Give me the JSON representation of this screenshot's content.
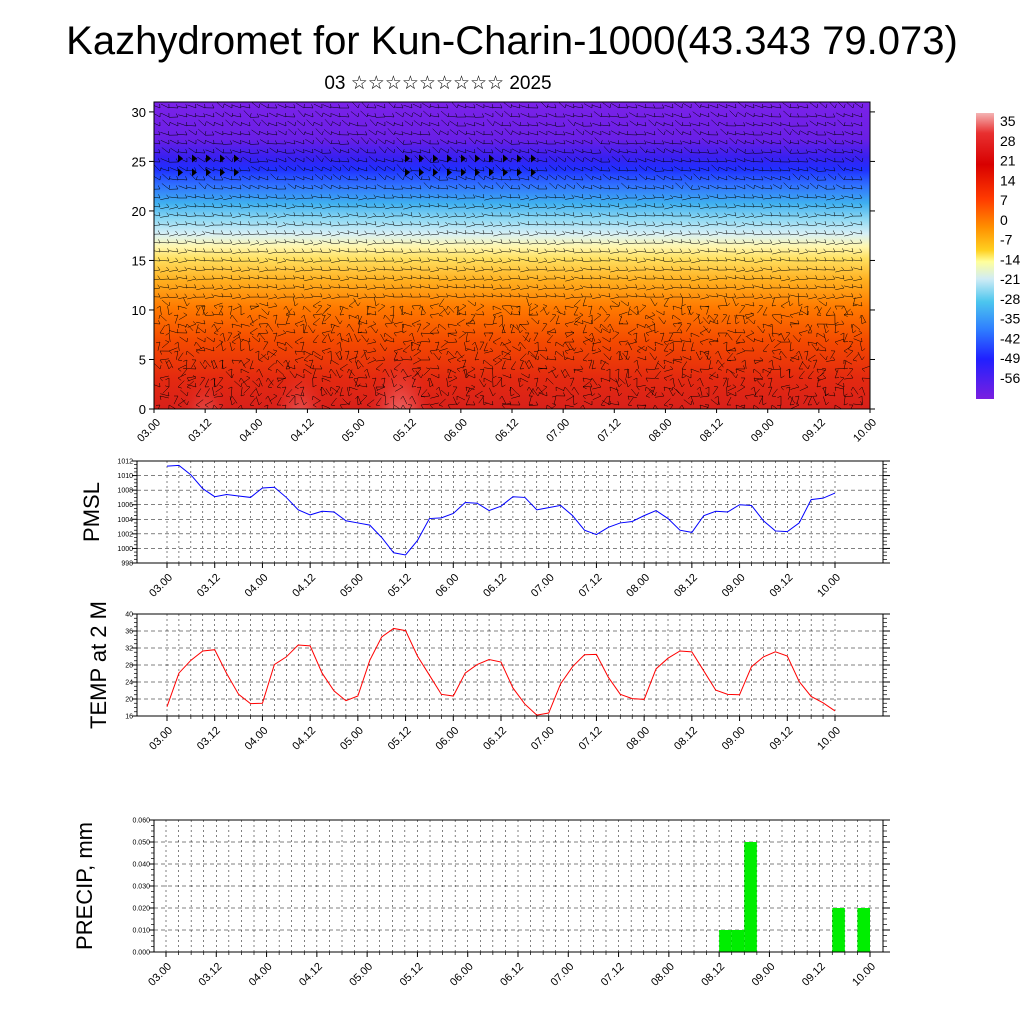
{
  "title": "Kazhydromet for Kun-Charin-1000(43.343 79.073)",
  "subtitle": "03 ☆☆☆☆☆☆☆☆☆ 2025",
  "time_labels": [
    "03.00",
    "03.12",
    "04.00",
    "04.12",
    "05.00",
    "05.12",
    "06.00",
    "06.12",
    "07.00",
    "07.12",
    "08.00",
    "08.12",
    "09.00",
    "09.12",
    "10.00"
  ],
  "colorbar": {
    "labels": [
      "35",
      "28",
      "21",
      "14",
      "7",
      "0",
      "-7",
      "-14",
      "-21",
      "-28",
      "-35",
      "-42",
      "-49",
      "-56"
    ]
  },
  "chart_data": [
    {
      "type": "heatmap",
      "name": "cross-section",
      "ylim": [
        0,
        31
      ],
      "yticks": [
        0,
        5,
        10,
        15,
        20,
        25,
        30
      ],
      "x": [
        "03.00",
        "03.12",
        "04.00",
        "04.12",
        "05.00",
        "05.12",
        "06.00",
        "06.12",
        "07.00",
        "07.12",
        "08.00",
        "08.12",
        "09.00",
        "09.12",
        "10.00"
      ],
      "colormap": [
        "#7a1fe0",
        "#2020ff",
        "#2e7bff",
        "#4cc6ee",
        "#d0ecf5",
        "#ffff9c",
        "#ffd020",
        "#ff9000",
        "#ff3000",
        "#e00000",
        "#f0a0a0"
      ],
      "levels": [
        -56,
        35
      ]
    },
    {
      "type": "line",
      "name": "PMSL",
      "ylabel": "PMSL",
      "ylim": [
        998,
        1012
      ],
      "yticks": [
        998,
        1000,
        1002,
        1004,
        1006,
        1008,
        1010,
        1012
      ],
      "color": "#0000ff",
      "x_step_hours": 3,
      "values": [
        1011.3,
        1011.4,
        1010.1,
        1008.2,
        1007.1,
        1007.4,
        1007.2,
        1007.0,
        1008.3,
        1008.4,
        1007.0,
        1005.3,
        1004.6,
        1005.1,
        1005.0,
        1003.8,
        1003.5,
        1003.2,
        1001.5,
        999.4,
        999.1,
        1001.1,
        1004.1,
        1004.2,
        1004.8,
        1006.3,
        1006.2,
        1005.2,
        1005.8,
        1007.1,
        1007.0,
        1005.3,
        1005.6,
        1005.9,
        1004.5,
        1002.5,
        1001.9,
        1002.9,
        1003.5,
        1003.7,
        1004.5,
        1005.2,
        1004.1,
        1002.5,
        1002.2,
        1004.5,
        1005.1,
        1005.0,
        1006.0,
        1005.9,
        1003.8,
        1002.4,
        1002.3,
        1003.5,
        1006.7,
        1006.9,
        1007.6
      ]
    },
    {
      "type": "line",
      "name": "TEMP at 2 M",
      "ylabel": "TEMP at 2 M",
      "ylim": [
        16,
        40
      ],
      "yticks": [
        16,
        20,
        24,
        28,
        32,
        36,
        40
      ],
      "color": "#ff0000",
      "x_step_hours": 3,
      "values": [
        18.2,
        26.1,
        29.1,
        31.3,
        31.6,
        26.0,
        21.1,
        18.9,
        19.0,
        28.1,
        29.9,
        32.7,
        32.5,
        26.1,
        21.9,
        19.6,
        20.7,
        29.1,
        34.6,
        36.6,
        36.1,
        30.1,
        25.6,
        21.1,
        20.7,
        26.1,
        28.1,
        29.3,
        28.7,
        22.6,
        18.8,
        16.2,
        16.7,
        23.6,
        27.6,
        30.4,
        30.5,
        25.1,
        21.1,
        20.1,
        19.9,
        27.1,
        29.6,
        31.3,
        31.1,
        26.6,
        22.1,
        21.1,
        21.0,
        27.6,
        29.9,
        31.1,
        30.1,
        24.1,
        20.6,
        19.1,
        17.2
      ]
    },
    {
      "type": "bar",
      "name": "precipitation",
      "ylabel": "PRECIP, mm",
      "ylim": [
        0,
        0.06
      ],
      "yticks": [
        "0.000",
        "0.010",
        "0.020",
        "0.030",
        "0.040",
        "0.050",
        "0.060"
      ],
      "color": "#00ee00",
      "x_step_hours": 3,
      "values": [
        0,
        0,
        0,
        0,
        0,
        0,
        0,
        0,
        0,
        0,
        0,
        0,
        0,
        0,
        0,
        0,
        0,
        0,
        0,
        0,
        0,
        0,
        0,
        0,
        0,
        0,
        0,
        0,
        0,
        0,
        0,
        0,
        0,
        0,
        0,
        0,
        0,
        0,
        0,
        0,
        0,
        0,
        0,
        0,
        0.01,
        0.01,
        0.05,
        0,
        0,
        0,
        0,
        0,
        0,
        0.02,
        0,
        0.02
      ]
    }
  ]
}
